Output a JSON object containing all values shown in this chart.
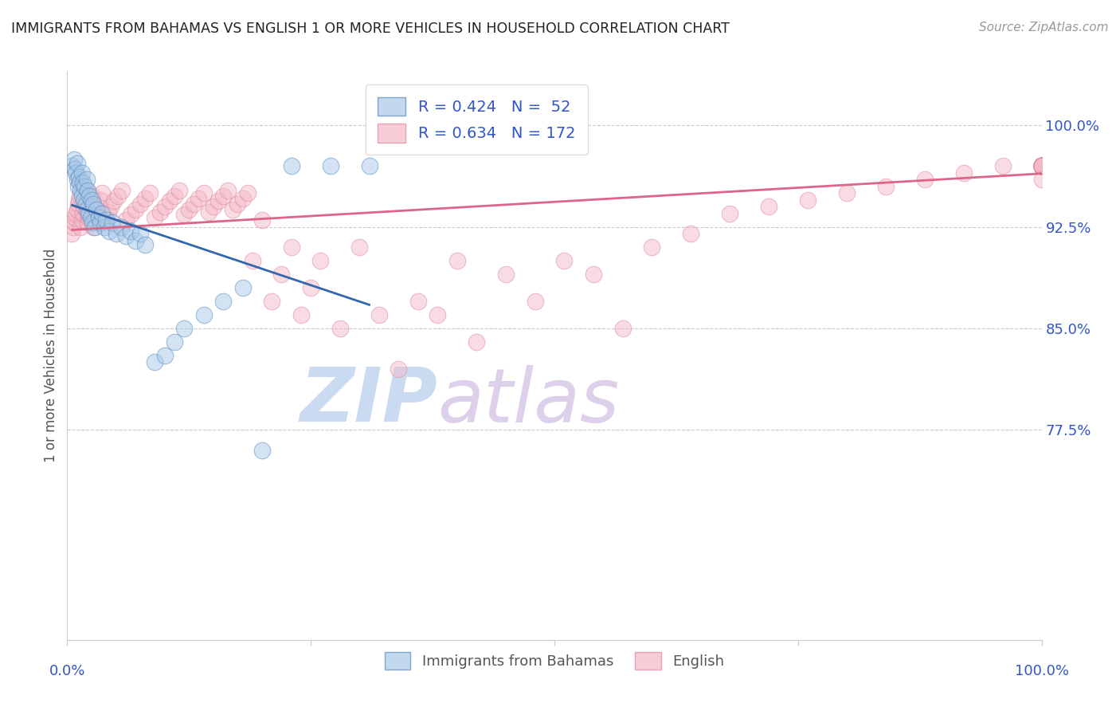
{
  "title": "IMMIGRANTS FROM BAHAMAS VS ENGLISH 1 OR MORE VEHICLES IN HOUSEHOLD CORRELATION CHART",
  "source": "Source: ZipAtlas.com",
  "ylabel": "1 or more Vehicles in Household",
  "ytick_labels": [
    "100.0%",
    "92.5%",
    "85.0%",
    "77.5%"
  ],
  "ytick_values": [
    1.0,
    0.925,
    0.85,
    0.775
  ],
  "xlim": [
    0.0,
    1.0
  ],
  "ylim": [
    0.62,
    1.04
  ],
  "legend_r_blue": "R = 0.424",
  "legend_n_blue": "N =  52",
  "legend_r_pink": "R = 0.634",
  "legend_n_pink": "N = 172",
  "blue_color": "#a8c8e8",
  "pink_color": "#f4b8c8",
  "blue_edge_color": "#5588bb",
  "pink_edge_color": "#dd8899",
  "blue_line_color": "#3366aa",
  "pink_line_color": "#dd6688",
  "title_color": "#222222",
  "axis_label_color": "#555555",
  "ytick_color": "#3355cc",
  "watermark_zip_color": "#c8d8ee",
  "watermark_atlas_color": "#d8c8e8",
  "background_color": "#ffffff",
  "grid_color": "#cccccc",
  "blue_scatter_x": [
    0.005,
    0.007,
    0.008,
    0.009,
    0.01,
    0.01,
    0.011,
    0.012,
    0.013,
    0.014,
    0.015,
    0.015,
    0.016,
    0.017,
    0.018,
    0.019,
    0.02,
    0.02,
    0.021,
    0.022,
    0.023,
    0.024,
    0.025,
    0.026,
    0.027,
    0.028,
    0.03,
    0.032,
    0.034,
    0.036,
    0.038,
    0.04,
    0.043,
    0.046,
    0.05,
    0.055,
    0.06,
    0.065,
    0.07,
    0.075,
    0.08,
    0.09,
    0.1,
    0.11,
    0.12,
    0.14,
    0.16,
    0.18,
    0.2,
    0.23,
    0.27,
    0.31
  ],
  "blue_scatter_y": [
    0.97,
    0.975,
    0.968,
    0.965,
    0.96,
    0.972,
    0.955,
    0.962,
    0.958,
    0.952,
    0.965,
    0.948,
    0.958,
    0.945,
    0.955,
    0.942,
    0.96,
    0.938,
    0.952,
    0.935,
    0.948,
    0.932,
    0.945,
    0.928,
    0.942,
    0.925,
    0.938,
    0.932,
    0.928,
    0.935,
    0.925,
    0.93,
    0.922,
    0.928,
    0.92,
    0.925,
    0.918,
    0.922,
    0.915,
    0.92,
    0.912,
    0.825,
    0.83,
    0.84,
    0.85,
    0.86,
    0.87,
    0.88,
    0.76,
    0.97,
    0.97,
    0.97
  ],
  "pink_scatter_x": [
    0.005,
    0.006,
    0.007,
    0.008,
    0.009,
    0.01,
    0.011,
    0.012,
    0.013,
    0.014,
    0.015,
    0.016,
    0.017,
    0.018,
    0.019,
    0.02,
    0.021,
    0.022,
    0.023,
    0.024,
    0.025,
    0.026,
    0.027,
    0.028,
    0.03,
    0.032,
    0.034,
    0.036,
    0.038,
    0.04,
    0.042,
    0.045,
    0.048,
    0.052,
    0.056,
    0.06,
    0.065,
    0.07,
    0.075,
    0.08,
    0.085,
    0.09,
    0.095,
    0.1,
    0.105,
    0.11,
    0.115,
    0.12,
    0.125,
    0.13,
    0.135,
    0.14,
    0.145,
    0.15,
    0.155,
    0.16,
    0.165,
    0.17,
    0.175,
    0.18,
    0.185,
    0.19,
    0.2,
    0.21,
    0.22,
    0.23,
    0.24,
    0.25,
    0.26,
    0.28,
    0.3,
    0.32,
    0.34,
    0.36,
    0.38,
    0.4,
    0.42,
    0.45,
    0.48,
    0.51,
    0.54,
    0.57,
    0.6,
    0.64,
    0.68,
    0.72,
    0.76,
    0.8,
    0.84,
    0.88,
    0.92,
    0.96,
    1.0,
    1.0,
    1.0,
    1.0,
    1.0,
    1.0,
    1.0,
    1.0,
    1.0,
    1.0,
    1.0,
    1.0,
    1.0,
    1.0,
    1.0,
    1.0,
    1.0,
    1.0,
    1.0,
    1.0,
    1.0,
    1.0,
    1.0,
    1.0,
    1.0,
    1.0,
    1.0,
    1.0,
    1.0,
    1.0,
    1.0,
    1.0,
    1.0,
    1.0,
    1.0,
    1.0,
    1.0,
    1.0,
    1.0,
    1.0,
    1.0,
    1.0,
    1.0,
    1.0,
    1.0,
    1.0,
    1.0,
    1.0,
    1.0,
    1.0,
    1.0,
    1.0,
    1.0,
    1.0,
    1.0,
    1.0,
    1.0,
    1.0,
    1.0,
    1.0,
    1.0,
    1.0,
    1.0,
    1.0,
    1.0,
    1.0,
    1.0,
    1.0,
    1.0,
    1.0,
    1.0,
    1.0,
    1.0,
    1.0,
    1.0,
    1.0,
    1.0,
    1.0,
    1.0,
    1.0,
    1.0
  ],
  "pink_scatter_y": [
    0.92,
    0.925,
    0.928,
    0.932,
    0.935,
    0.938,
    0.942,
    0.945,
    0.948,
    0.925,
    0.93,
    0.935,
    0.94,
    0.945,
    0.948,
    0.952,
    0.928,
    0.932,
    0.936,
    0.94,
    0.944,
    0.948,
    0.925,
    0.93,
    0.935,
    0.94,
    0.945,
    0.95,
    0.928,
    0.932,
    0.936,
    0.94,
    0.944,
    0.948,
    0.952,
    0.93,
    0.934,
    0.938,
    0.942,
    0.946,
    0.95,
    0.932,
    0.936,
    0.94,
    0.944,
    0.948,
    0.952,
    0.934,
    0.938,
    0.942,
    0.946,
    0.95,
    0.936,
    0.94,
    0.944,
    0.948,
    0.952,
    0.938,
    0.942,
    0.946,
    0.95,
    0.9,
    0.93,
    0.87,
    0.89,
    0.91,
    0.86,
    0.88,
    0.9,
    0.85,
    0.91,
    0.86,
    0.82,
    0.87,
    0.86,
    0.9,
    0.84,
    0.89,
    0.87,
    0.9,
    0.89,
    0.85,
    0.91,
    0.92,
    0.935,
    0.94,
    0.945,
    0.95,
    0.955,
    0.96,
    0.965,
    0.97,
    0.97,
    0.97,
    0.97,
    0.97,
    0.97,
    0.97,
    0.97,
    0.97,
    0.97,
    0.97,
    0.97,
    0.97,
    0.97,
    0.97,
    0.97,
    0.97,
    0.97,
    0.97,
    0.97,
    0.97,
    0.97,
    0.97,
    0.97,
    0.97,
    0.97,
    0.97,
    0.97,
    0.97,
    0.97,
    0.97,
    0.97,
    0.97,
    0.97,
    0.97,
    0.97,
    0.97,
    0.97,
    0.97,
    0.97,
    0.97,
    0.97,
    0.97,
    0.97,
    0.97,
    0.97,
    0.97,
    0.97,
    0.97,
    0.97,
    0.97,
    0.97,
    0.97,
    0.97,
    0.97,
    0.97,
    0.97,
    0.97,
    0.97,
    0.97,
    0.97,
    0.97,
    0.97,
    0.97,
    0.97,
    0.97,
    0.97,
    0.97,
    0.97,
    0.97,
    0.97,
    0.97,
    0.97,
    0.97,
    0.97,
    0.97,
    0.97,
    0.97,
    0.97,
    0.97,
    0.97,
    0.96
  ]
}
